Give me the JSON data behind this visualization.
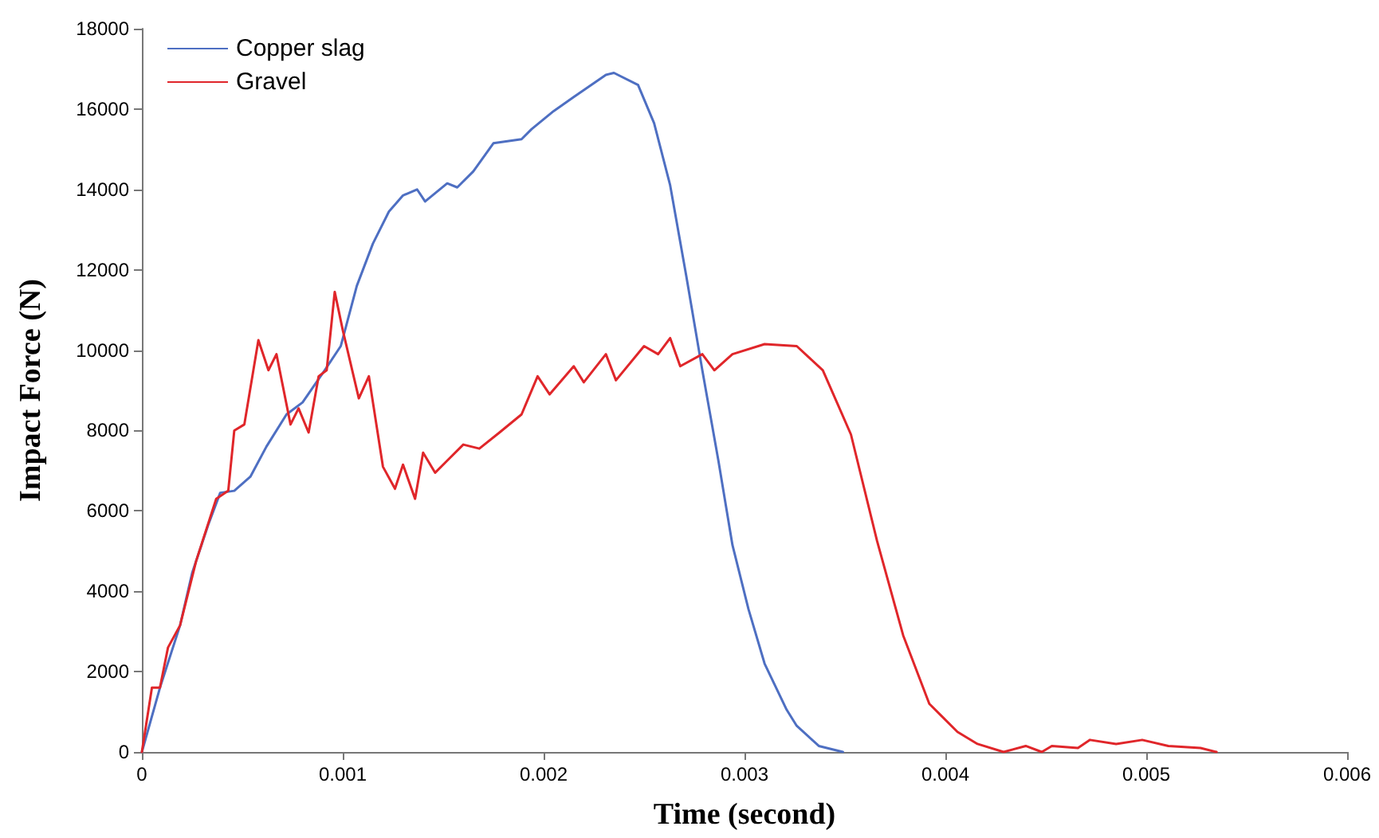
{
  "chart_data": {
    "type": "line",
    "xlabel": "Time (second)",
    "ylabel": "Impact Force (N)",
    "xlim": [
      0,
      0.006
    ],
    "xticks": [
      0,
      0.001,
      0.002,
      0.003,
      0.004,
      0.005,
      0.006
    ],
    "ylim": [
      0,
      18000
    ],
    "yticks": [
      0,
      2000,
      4000,
      6000,
      8000,
      10000,
      12000,
      14000,
      16000,
      18000
    ],
    "grid": false,
    "legend": "top left",
    "marker": "none",
    "line_style": "solid",
    "series": [
      {
        "name": "Copper slag",
        "color": "#4e6fc2",
        "x": [
          0,
          9e-05,
          0.00019,
          0.00025,
          0.00033,
          0.00039,
          0.00046,
          0.00054,
          0.00062,
          0.00072,
          0.0008,
          0.00091,
          0.00099,
          0.00107,
          0.00115,
          0.00123,
          0.0013,
          0.00137,
          0.00141,
          0.00152,
          0.00157,
          0.00165,
          0.00175,
          0.00189,
          0.00194,
          0.00205,
          0.00215,
          0.00231,
          0.00235,
          0.00247,
          0.00255,
          0.00263,
          0.00271,
          0.00279,
          0.00287,
          0.00294,
          0.00302,
          0.0031,
          0.00321,
          0.00326,
          0.00337,
          0.00349
        ],
        "values": [
          0,
          1600,
          3150,
          4450,
          5650,
          6450,
          6500,
          6850,
          7600,
          8400,
          8700,
          9500,
          10100,
          11600,
          12650,
          13450,
          13850,
          14000,
          13700,
          14150,
          14050,
          14450,
          15150,
          15250,
          15500,
          15950,
          16300,
          16850,
          16900,
          16600,
          15650,
          14100,
          11850,
          9500,
          7250,
          5150,
          3550,
          2200,
          1050,
          650,
          150,
          0
        ]
      },
      {
        "name": "Gravel",
        "color": "#e0262a",
        "x": [
          0,
          5e-05,
          9e-05,
          0.00013,
          0.00019,
          0.00027,
          0.00037,
          0.00043,
          0.00046,
          0.00051,
          0.00058,
          0.00063,
          0.00067,
          0.00074,
          0.00078,
          0.00083,
          0.00088,
          0.00092,
          0.00096,
          0.001,
          0.00108,
          0.00113,
          0.0012,
          0.00126,
          0.0013,
          0.00136,
          0.0014,
          0.00146,
          0.00152,
          0.0016,
          0.00168,
          0.00178,
          0.00189,
          0.00197,
          0.00203,
          0.00215,
          0.0022,
          0.00231,
          0.00236,
          0.0025,
          0.00257,
          0.00263,
          0.00268,
          0.00279,
          0.00285,
          0.00294,
          0.0031,
          0.00326,
          0.00339,
          0.00353,
          0.00366,
          0.00379,
          0.00392,
          0.00398,
          0.00406,
          0.00416,
          0.00429,
          0.0044,
          0.00448,
          0.00453,
          0.00466,
          0.00472,
          0.00485,
          0.00498,
          0.00511,
          0.00527,
          0.00535
        ],
        "values": [
          0,
          1600,
          1600,
          2600,
          3150,
          4750,
          6300,
          6500,
          8000,
          8150,
          10250,
          9500,
          9900,
          8150,
          8550,
          7950,
          9350,
          9500,
          11450,
          10500,
          8800,
          9350,
          7100,
          6550,
          7150,
          6300,
          7450,
          6950,
          7250,
          7650,
          7550,
          7950,
          8400,
          9350,
          8900,
          9600,
          9200,
          9900,
          9250,
          10100,
          9900,
          10300,
          9600,
          9900,
          9500,
          9900,
          10150,
          10100,
          9500,
          7900,
          5250,
          2900,
          1200,
          900,
          500,
          200,
          0,
          150,
          0,
          150,
          100,
          300,
          200,
          300,
          150,
          100,
          0
        ]
      }
    ]
  }
}
